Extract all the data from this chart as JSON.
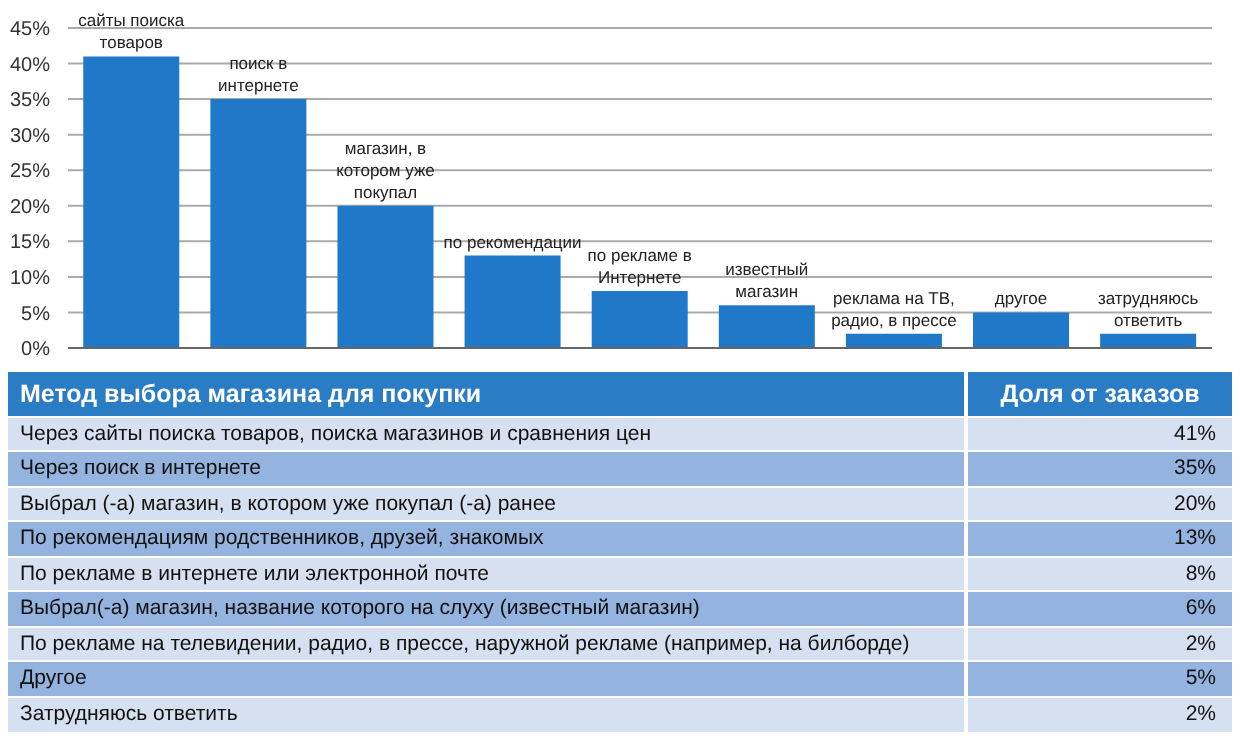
{
  "chart_data": {
    "type": "bar",
    "categories": [
      "сайты поиска товаров",
      "поиск в интернете",
      "магазин, в котором уже покупал",
      "по рекомендации",
      "по рекламе в Интернете",
      "известный магазин",
      "реклама на ТВ, радио, в прессе",
      "другое",
      "затрудняюсь ответить"
    ],
    "values": [
      41,
      35,
      20,
      13,
      8,
      6,
      2,
      5,
      2
    ],
    "color": "#1f78c8",
    "ylim": [
      0,
      45
    ],
    "yticks": [
      {
        "value": 0,
        "label": "0%"
      },
      {
        "value": 5,
        "label": "5%"
      },
      {
        "value": 10,
        "label": "10%"
      },
      {
        "value": 15,
        "label": "15%"
      },
      {
        "value": 20,
        "label": "20%"
      },
      {
        "value": 25,
        "label": "25%"
      },
      {
        "value": 30,
        "label": "30%"
      },
      {
        "value": 35,
        "label": "35%"
      },
      {
        "value": 40,
        "label": "40%"
      },
      {
        "value": 45,
        "label": "45%"
      }
    ],
    "grid": "y",
    "annotations": [
      "Метод выбора магазина для покупки",
      "Доля от заказов",
      "Через сайты поиска товаров, поиска магазинов и сравнения цен",
      "41%",
      "Через поиск в интернете",
      "35%",
      "Выбрал (-а) магазин, в котором уже покупал (-а) ранее",
      "20%",
      "По рекомендациям родственников, друзей, знакомых",
      "13%",
      "По рекламе в интернете или электронной почте",
      "8%",
      "Выбрал(-а) магазин, название которого на слуху (известный магазин)",
      "6%",
      "По рекламе на телевидении, радио, в прессе, наружной рекламе (например, на билборде)",
      "2%",
      "Другое",
      "5%",
      "Затрудняюсь ответить",
      "2%"
    ]
  }
}
